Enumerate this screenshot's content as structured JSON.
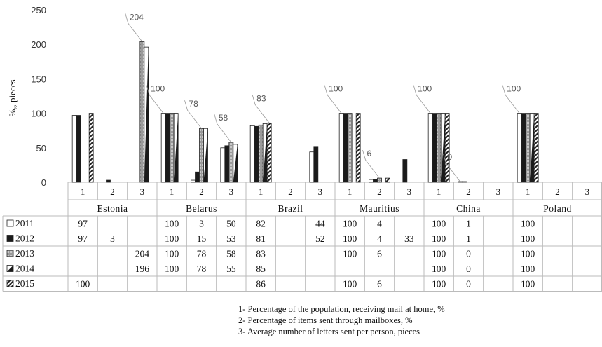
{
  "chart_data": {
    "type": "bar",
    "ylabel": "%,, pieces",
    "ylim": [
      0,
      250
    ],
    "yticks": [
      0,
      50,
      100,
      150,
      200,
      250
    ],
    "grid": false,
    "groups": [
      "Estonia",
      "Belarus",
      "Brazil",
      "Mauritius",
      "China",
      "Poland"
    ],
    "subcategories": [
      "1",
      "2",
      "3"
    ],
    "series": [
      {
        "name": "2011",
        "pattern": "white",
        "values": [
          [
            97,
            null,
            null
          ],
          [
            100,
            3,
            50
          ],
          [
            82,
            null,
            44
          ],
          [
            100,
            4,
            null
          ],
          [
            100,
            1,
            null
          ],
          [
            100,
            null,
            null
          ]
        ]
      },
      {
        "name": "2012",
        "pattern": "black",
        "values": [
          [
            97,
            3,
            null
          ],
          [
            100,
            15,
            53
          ],
          [
            81,
            null,
            52
          ],
          [
            100,
            4,
            33
          ],
          [
            100,
            1,
            null
          ],
          [
            100,
            null,
            null
          ]
        ]
      },
      {
        "name": "2013",
        "pattern": "gray",
        "values": [
          [
            null,
            null,
            204
          ],
          [
            100,
            78,
            58
          ],
          [
            83,
            null,
            null
          ],
          [
            100,
            6,
            null
          ],
          [
            100,
            0,
            null
          ],
          [
            100,
            null,
            null
          ]
        ]
      },
      {
        "name": "2014",
        "pattern": "half",
        "values": [
          [
            null,
            null,
            196
          ],
          [
            100,
            78,
            55
          ],
          [
            85,
            null,
            null
          ],
          [
            null,
            null,
            null
          ],
          [
            100,
            0,
            null
          ],
          [
            100,
            null,
            null
          ]
        ]
      },
      {
        "name": "2015",
        "pattern": "stripe",
        "values": [
          [
            100,
            null,
            null
          ],
          [
            null,
            null,
            null
          ],
          [
            86,
            null,
            null
          ],
          [
            100,
            6,
            null
          ],
          [
            100,
            0,
            null
          ],
          [
            100,
            null,
            null
          ]
        ]
      }
    ],
    "annotations": [
      {
        "group": 0,
        "sub": 2,
        "text": "204"
      },
      {
        "group": 1,
        "sub": 0,
        "text": "100"
      },
      {
        "group": 1,
        "sub": 1,
        "text": "78"
      },
      {
        "group": 1,
        "sub": 2,
        "text": "58"
      },
      {
        "group": 2,
        "sub": 0,
        "text": "83"
      },
      {
        "group": 3,
        "sub": 0,
        "text": "100"
      },
      {
        "group": 3,
        "sub": 1,
        "text": "6"
      },
      {
        "group": 4,
        "sub": 0,
        "text": "100"
      },
      {
        "group": 4,
        "sub": 1,
        "text": "0"
      },
      {
        "group": 5,
        "sub": 0,
        "text": "100"
      }
    ]
  },
  "notes": [
    "1- Percentage of the population, receiving mail at home, %",
    "2- Percentage of items sent through mailboxes,  %",
    "3- Average number of letters sent per person, pieces"
  ]
}
